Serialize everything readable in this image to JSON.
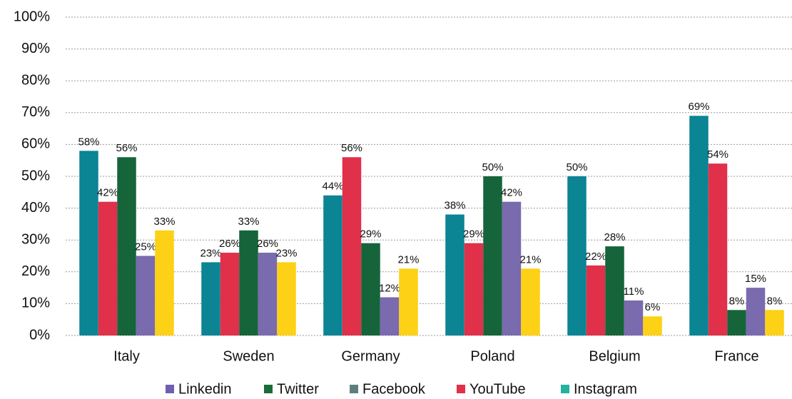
{
  "chart_data": {
    "type": "bar",
    "categories": [
      "Italy",
      "Sweden",
      "Germany",
      "Poland",
      "Belgium",
      "France"
    ],
    "series": [
      {
        "color": "#0b8494",
        "values": [
          58,
          23,
          44,
          38,
          50,
          69
        ],
        "value_labels": [
          "58%",
          "23%",
          "44%",
          "38%",
          "50%",
          "69%"
        ]
      },
      {
        "color": "#e0304a",
        "values": [
          42,
          26,
          56,
          29,
          22,
          54
        ],
        "value_labels": [
          "42%",
          "26%",
          "56%",
          "29%",
          "22%",
          "54%"
        ]
      },
      {
        "color": "#16643a",
        "values": [
          56,
          33,
          29,
          50,
          28,
          8
        ],
        "value_labels": [
          "56%",
          "33%",
          "29%",
          "50%",
          "28%",
          "8%"
        ]
      },
      {
        "color": "#7a6aae",
        "values": [
          25,
          26,
          12,
          42,
          11,
          15
        ],
        "value_labels": [
          "25%",
          "26%",
          "12%",
          "42%",
          "11%",
          "15%"
        ]
      },
      {
        "color": "#fcd116",
        "values": [
          33,
          23,
          21,
          21,
          6,
          8
        ],
        "value_labels": [
          "33%",
          "23%",
          "21%",
          "21%",
          "6%",
          "8%"
        ]
      }
    ],
    "legend": [
      {
        "name": "Linkedin",
        "color": "#6f5fb0"
      },
      {
        "name": "Twitter",
        "color": "#1a6b3a"
      },
      {
        "name": "Facebook",
        "color": "#5e7f80"
      },
      {
        "name": "YouTube",
        "color": "#e0304a"
      },
      {
        "name": "Instagram",
        "color": "#22b3a0"
      }
    ],
    "ylim": [
      0,
      100
    ],
    "yticks": [
      {
        "value": 0,
        "label": "0%"
      },
      {
        "value": 10,
        "label": "10%"
      },
      {
        "value": 20,
        "label": "20%"
      },
      {
        "value": 30,
        "label": "30%"
      },
      {
        "value": 40,
        "label": "40%"
      },
      {
        "value": 50,
        "label": "50%"
      },
      {
        "value": 60,
        "label": "60%"
      },
      {
        "value": 70,
        "label": "70%"
      },
      {
        "value": 80,
        "label": "80%"
      },
      {
        "value": 90,
        "label": "90%"
      },
      {
        "value": 100,
        "label": "100%"
      }
    ],
    "grid": true
  }
}
